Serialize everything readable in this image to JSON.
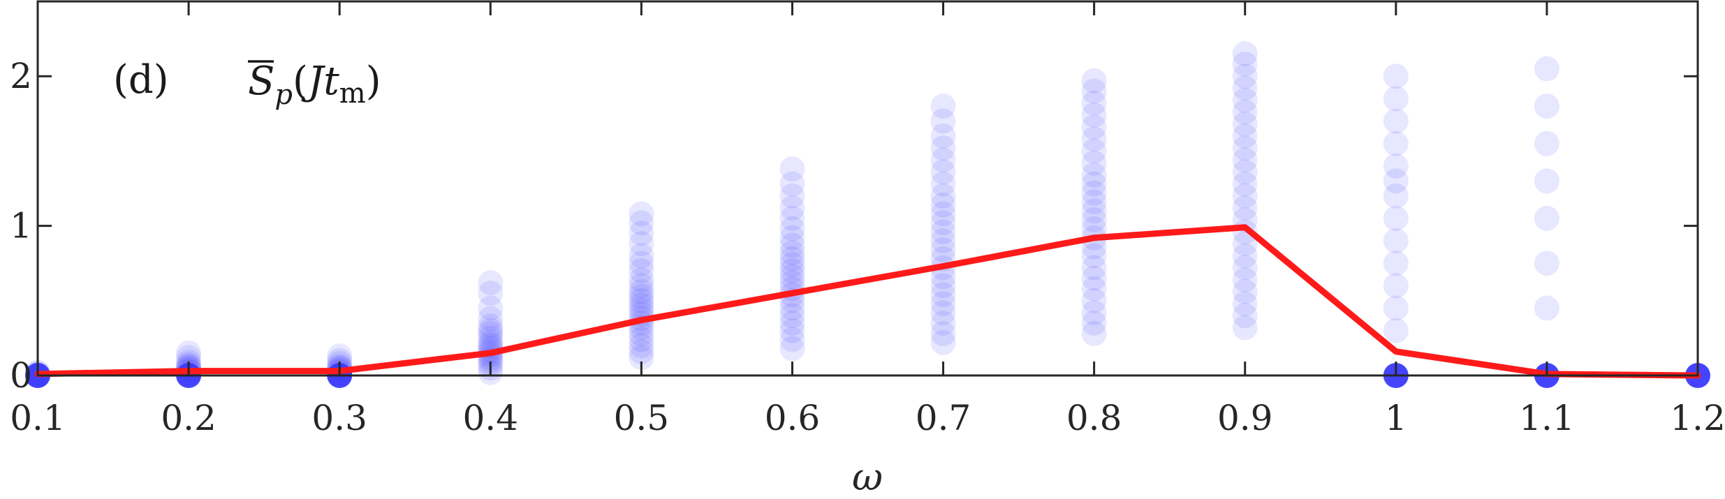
{
  "chart_data": {
    "type": "scatter",
    "panel_label": "(d)",
    "title_main": "S",
    "title_sub": "p",
    "title_arg_open": "(",
    "title_arg_var": "Jt",
    "title_arg_sub": "m",
    "title_arg_close": ")",
    "xlabel": "ω",
    "ylabel": "",
    "xlim": [
      0.1,
      1.2
    ],
    "ylim": [
      0,
      2.5
    ],
    "x_ticks": [
      0.1,
      0.2,
      0.3,
      0.4,
      0.5,
      0.6,
      0.7,
      0.8,
      0.9,
      1.0,
      1.1,
      1.2
    ],
    "x_tick_labels": [
      "0.1",
      "0.2",
      "0.3",
      "0.4",
      "0.5",
      "0.6",
      "0.7",
      "0.8",
      "0.9",
      "1",
      "1.1",
      "1.2"
    ],
    "y_ticks": [
      0,
      1,
      2
    ],
    "y_tick_labels": [
      "0",
      "1",
      "2"
    ],
    "grid": false,
    "colors": {
      "points": "#3b3bff",
      "line": "#ff1a1a",
      "axes": "#262626"
    },
    "series": [
      {
        "kind": "samples",
        "style": "semi-transparent blue dots",
        "distributions": [
          {
            "x": 0.1,
            "values": [
              0.0,
              0.0,
              0.0,
              0.01,
              0.01,
              0.02
            ]
          },
          {
            "x": 0.2,
            "values": [
              0.0,
              0.02,
              0.03,
              0.04,
              0.05,
              0.06,
              0.07,
              0.09,
              0.12,
              0.15
            ]
          },
          {
            "x": 0.3,
            "values": [
              0.0,
              0.02,
              0.03,
              0.04,
              0.05,
              0.06,
              0.08,
              0.1,
              0.13
            ]
          },
          {
            "x": 0.4,
            "values": [
              0.02,
              0.05,
              0.08,
              0.1,
              0.12,
              0.14,
              0.16,
              0.18,
              0.2,
              0.22,
              0.25,
              0.28,
              0.3,
              0.33,
              0.38,
              0.45,
              0.55,
              0.62
            ]
          },
          {
            "x": 0.5,
            "values": [
              0.12,
              0.16,
              0.2,
              0.24,
              0.28,
              0.32,
              0.35,
              0.38,
              0.41,
              0.44,
              0.47,
              0.5,
              0.53,
              0.56,
              0.6,
              0.64,
              0.7,
              0.75,
              0.8,
              0.88,
              0.95,
              1.02,
              1.08
            ]
          },
          {
            "x": 0.6,
            "values": [
              0.18,
              0.24,
              0.3,
              0.35,
              0.4,
              0.45,
              0.5,
              0.54,
              0.58,
              0.62,
              0.66,
              0.7,
              0.74,
              0.78,
              0.82,
              0.87,
              0.92,
              0.98,
              1.05,
              1.12,
              1.2,
              1.28,
              1.38
            ]
          },
          {
            "x": 0.7,
            "values": [
              0.22,
              0.28,
              0.35,
              0.42,
              0.48,
              0.54,
              0.6,
              0.66,
              0.72,
              0.78,
              0.84,
              0.9,
              0.96,
              1.02,
              1.08,
              1.14,
              1.2,
              1.28,
              1.36,
              1.44,
              1.52,
              1.6,
              1.7,
              1.8
            ]
          },
          {
            "x": 0.8,
            "values": [
              0.28,
              0.35,
              0.42,
              0.5,
              0.58,
              0.65,
              0.72,
              0.8,
              0.86,
              0.92,
              0.98,
              1.04,
              1.1,
              1.16,
              1.22,
              1.28,
              1.34,
              1.42,
              1.5,
              1.58,
              1.66,
              1.74,
              1.82,
              1.9,
              1.97
            ]
          },
          {
            "x": 0.9,
            "values": [
              0.32,
              0.4,
              0.48,
              0.56,
              0.64,
              0.72,
              0.8,
              0.88,
              0.96,
              1.04,
              1.12,
              1.2,
              1.28,
              1.36,
              1.44,
              1.52,
              1.6,
              1.68,
              1.76,
              1.84,
              1.92,
              2.0,
              2.08,
              2.15
            ]
          },
          {
            "x": 1.0,
            "values": [
              0.0,
              0.3,
              0.45,
              0.6,
              0.75,
              0.9,
              1.05,
              1.2,
              1.3,
              1.4,
              1.55,
              1.7,
              1.85,
              2.0
            ]
          },
          {
            "x": 1.1,
            "values": [
              0.0,
              0.45,
              0.75,
              1.05,
              1.3,
              1.55,
              1.8,
              2.05
            ]
          },
          {
            "x": 1.2,
            "values": [
              0.0
            ]
          }
        ]
      },
      {
        "kind": "mean",
        "style": "red line",
        "x": [
          0.1,
          0.2,
          0.3,
          0.4,
          0.5,
          0.6,
          0.7,
          0.8,
          0.9,
          1.0,
          1.1,
          1.2
        ],
        "y": [
          0.01,
          0.03,
          0.03,
          0.15,
          0.37,
          0.55,
          0.73,
          0.92,
          0.99,
          0.16,
          0.01,
          0.0
        ]
      }
    ]
  }
}
